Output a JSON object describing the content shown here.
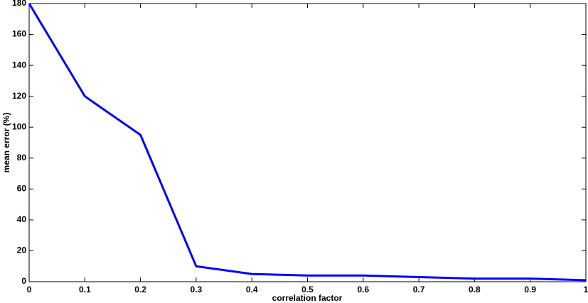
{
  "chart_data": {
    "type": "line",
    "x_label": "correlation factor",
    "y_label": "mean error (%)",
    "x": [
      0,
      0.1,
      0.2,
      0.3,
      0.4,
      0.5,
      0.6,
      0.7,
      0.8,
      0.9,
      1
    ],
    "series": [
      {
        "name": "mean error",
        "color": "#0000ff",
        "values": [
          180,
          120,
          95,
          10,
          5,
          4,
          4,
          3,
          2,
          2,
          1
        ]
      }
    ],
    "xlim": [
      0,
      1
    ],
    "xticks": [
      0,
      0.1,
      0.2,
      0.3,
      0.4,
      0.5,
      0.6,
      0.7,
      0.8,
      0.9,
      1
    ],
    "ylim": [
      0,
      180
    ],
    "yticks": [
      0,
      20,
      40,
      60,
      80,
      100,
      120,
      140,
      160,
      180
    ],
    "grid": false
  }
}
